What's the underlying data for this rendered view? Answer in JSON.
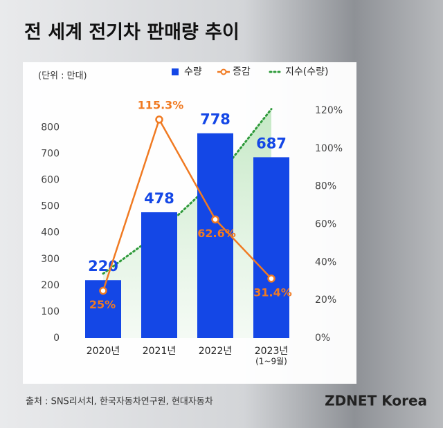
{
  "title": "전 세계 전기차 판매량 추이",
  "source": "출처 : SNS리서치, 한국자동차연구원, 현대자동차",
  "logo": "ZDNET Korea",
  "chart_data": {
    "type": "combo",
    "unit_label": "(단위 : 만대)",
    "categories": [
      "2020년",
      "2021년",
      "2022년",
      "2023년\n(1~9월)"
    ],
    "series": [
      {
        "name": "수량",
        "type": "bar",
        "color": "#1447e6",
        "values": [
          220,
          478,
          778,
          687
        ]
      },
      {
        "name": "증감",
        "type": "line",
        "axis": "y2",
        "color": "#f07a22",
        "values": [
          25,
          115.3,
          62.6,
          31.4
        ],
        "value_labels": [
          "25%",
          "115.3%",
          "62.6%",
          "31.4%"
        ]
      },
      {
        "name": "지수(수량)",
        "type": "trend",
        "color": "#2e9a3a",
        "values": [
          245,
          400,
          600,
          870
        ]
      }
    ],
    "ylim": [
      0,
      864
    ],
    "yticks": [
      0,
      100,
      200,
      300,
      400,
      500,
      600,
      700,
      800
    ],
    "y2lim": [
      0,
      120
    ],
    "y2ticks": [
      {
        "value": 0,
        "label": "0%"
      },
      {
        "value": 20,
        "label": "20%"
      },
      {
        "value": 40,
        "label": "40%"
      },
      {
        "value": 60,
        "label": "60%"
      },
      {
        "value": 80,
        "label": "80%"
      },
      {
        "value": 100,
        "label": "100%"
      },
      {
        "value": 120,
        "label": "120%"
      }
    ],
    "legend": "top-right"
  }
}
